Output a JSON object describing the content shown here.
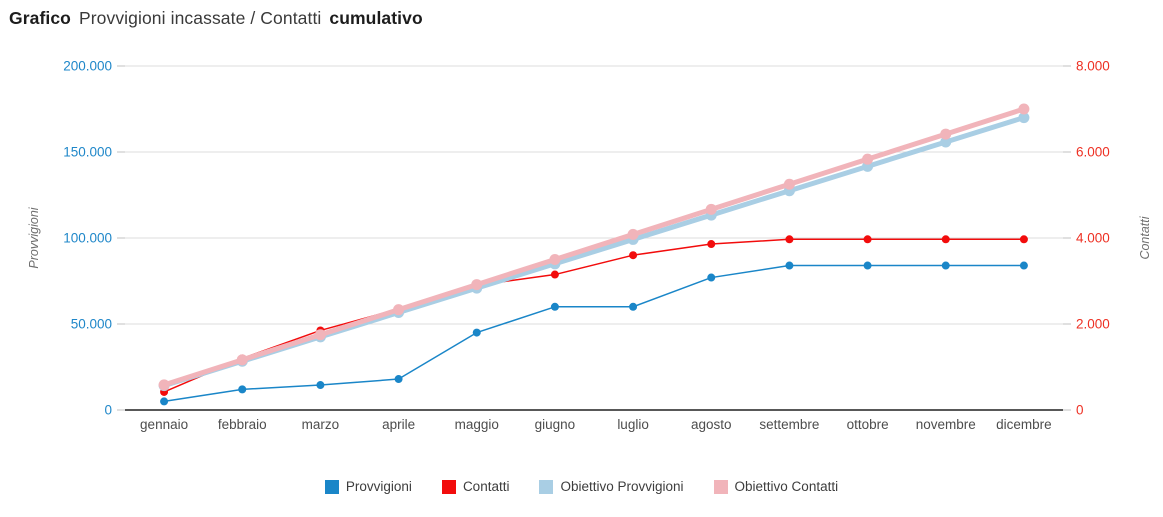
{
  "title": {
    "prefix": "Grafico",
    "main": "Provvigioni incassate / Contatti",
    "suffix": "cumulativo"
  },
  "chart_data": {
    "type": "line",
    "categories": [
      "gennaio",
      "febbraio",
      "marzo",
      "aprile",
      "maggio",
      "giugno",
      "luglio",
      "agosto",
      "settembre",
      "ottobre",
      "novembre",
      "dicembre"
    ],
    "series": [
      {
        "name": "Provvigioni",
        "axis": "left",
        "color": "#1a86c8",
        "style": "thin",
        "values": [
          5000,
          12000,
          14500,
          18000,
          45000,
          60000,
          60000,
          77000,
          84000,
          84000,
          84000,
          84000
        ]
      },
      {
        "name": "Contatti",
        "axis": "right",
        "color": "#f20c0c",
        "style": "thin",
        "values": [
          420,
          1200,
          1850,
          2350,
          2900,
          3150,
          3600,
          3860,
          3970,
          3970,
          3970,
          3970
        ]
      },
      {
        "name": "Obiettivo Provvigioni",
        "axis": "left",
        "color": "#a9cee4",
        "style": "thick",
        "values": [
          14167,
          28333,
          42500,
          56667,
          70833,
          85000,
          99167,
          113333,
          127500,
          141667,
          155833,
          170000
        ]
      },
      {
        "name": "Obiettivo Contatti",
        "axis": "right",
        "color": "#f1b4ba",
        "style": "thick",
        "values": [
          583,
          1167,
          1750,
          2333,
          2917,
          3500,
          4083,
          4667,
          5250,
          5833,
          6417,
          7000
        ]
      }
    ],
    "left_axis": {
      "title": "Provvigioni",
      "color": "#1f87c9",
      "max": 200000,
      "ticks": [
        {
          "label": "200.000",
          "value": 200000
        },
        {
          "label": "150.000",
          "value": 150000
        },
        {
          "label": "100.000",
          "value": 100000
        },
        {
          "label": "50.000",
          "value": 50000
        },
        {
          "label": "0",
          "value": 0
        }
      ]
    },
    "right_axis": {
      "title": "Contatti",
      "color": "#ee3124",
      "max": 8000,
      "ticks": [
        {
          "label": "8.000",
          "value": 8000
        },
        {
          "label": "6.000",
          "value": 6000
        },
        {
          "label": "4.000",
          "value": 4000
        },
        {
          "label": "2.000",
          "value": 2000
        },
        {
          "label": "0",
          "value": 0
        }
      ]
    },
    "legend_position": "bottom",
    "grid": true,
    "colors": {
      "gridline": "#dcdcdc",
      "tick_mark": "#c2c2c2",
      "x_axis_line": "#212121",
      "x_label": "#4d4d4d",
      "axis_title": "#6e6e6e",
      "legend_label": "#3d3d3d",
      "background": "#ffffff"
    }
  }
}
